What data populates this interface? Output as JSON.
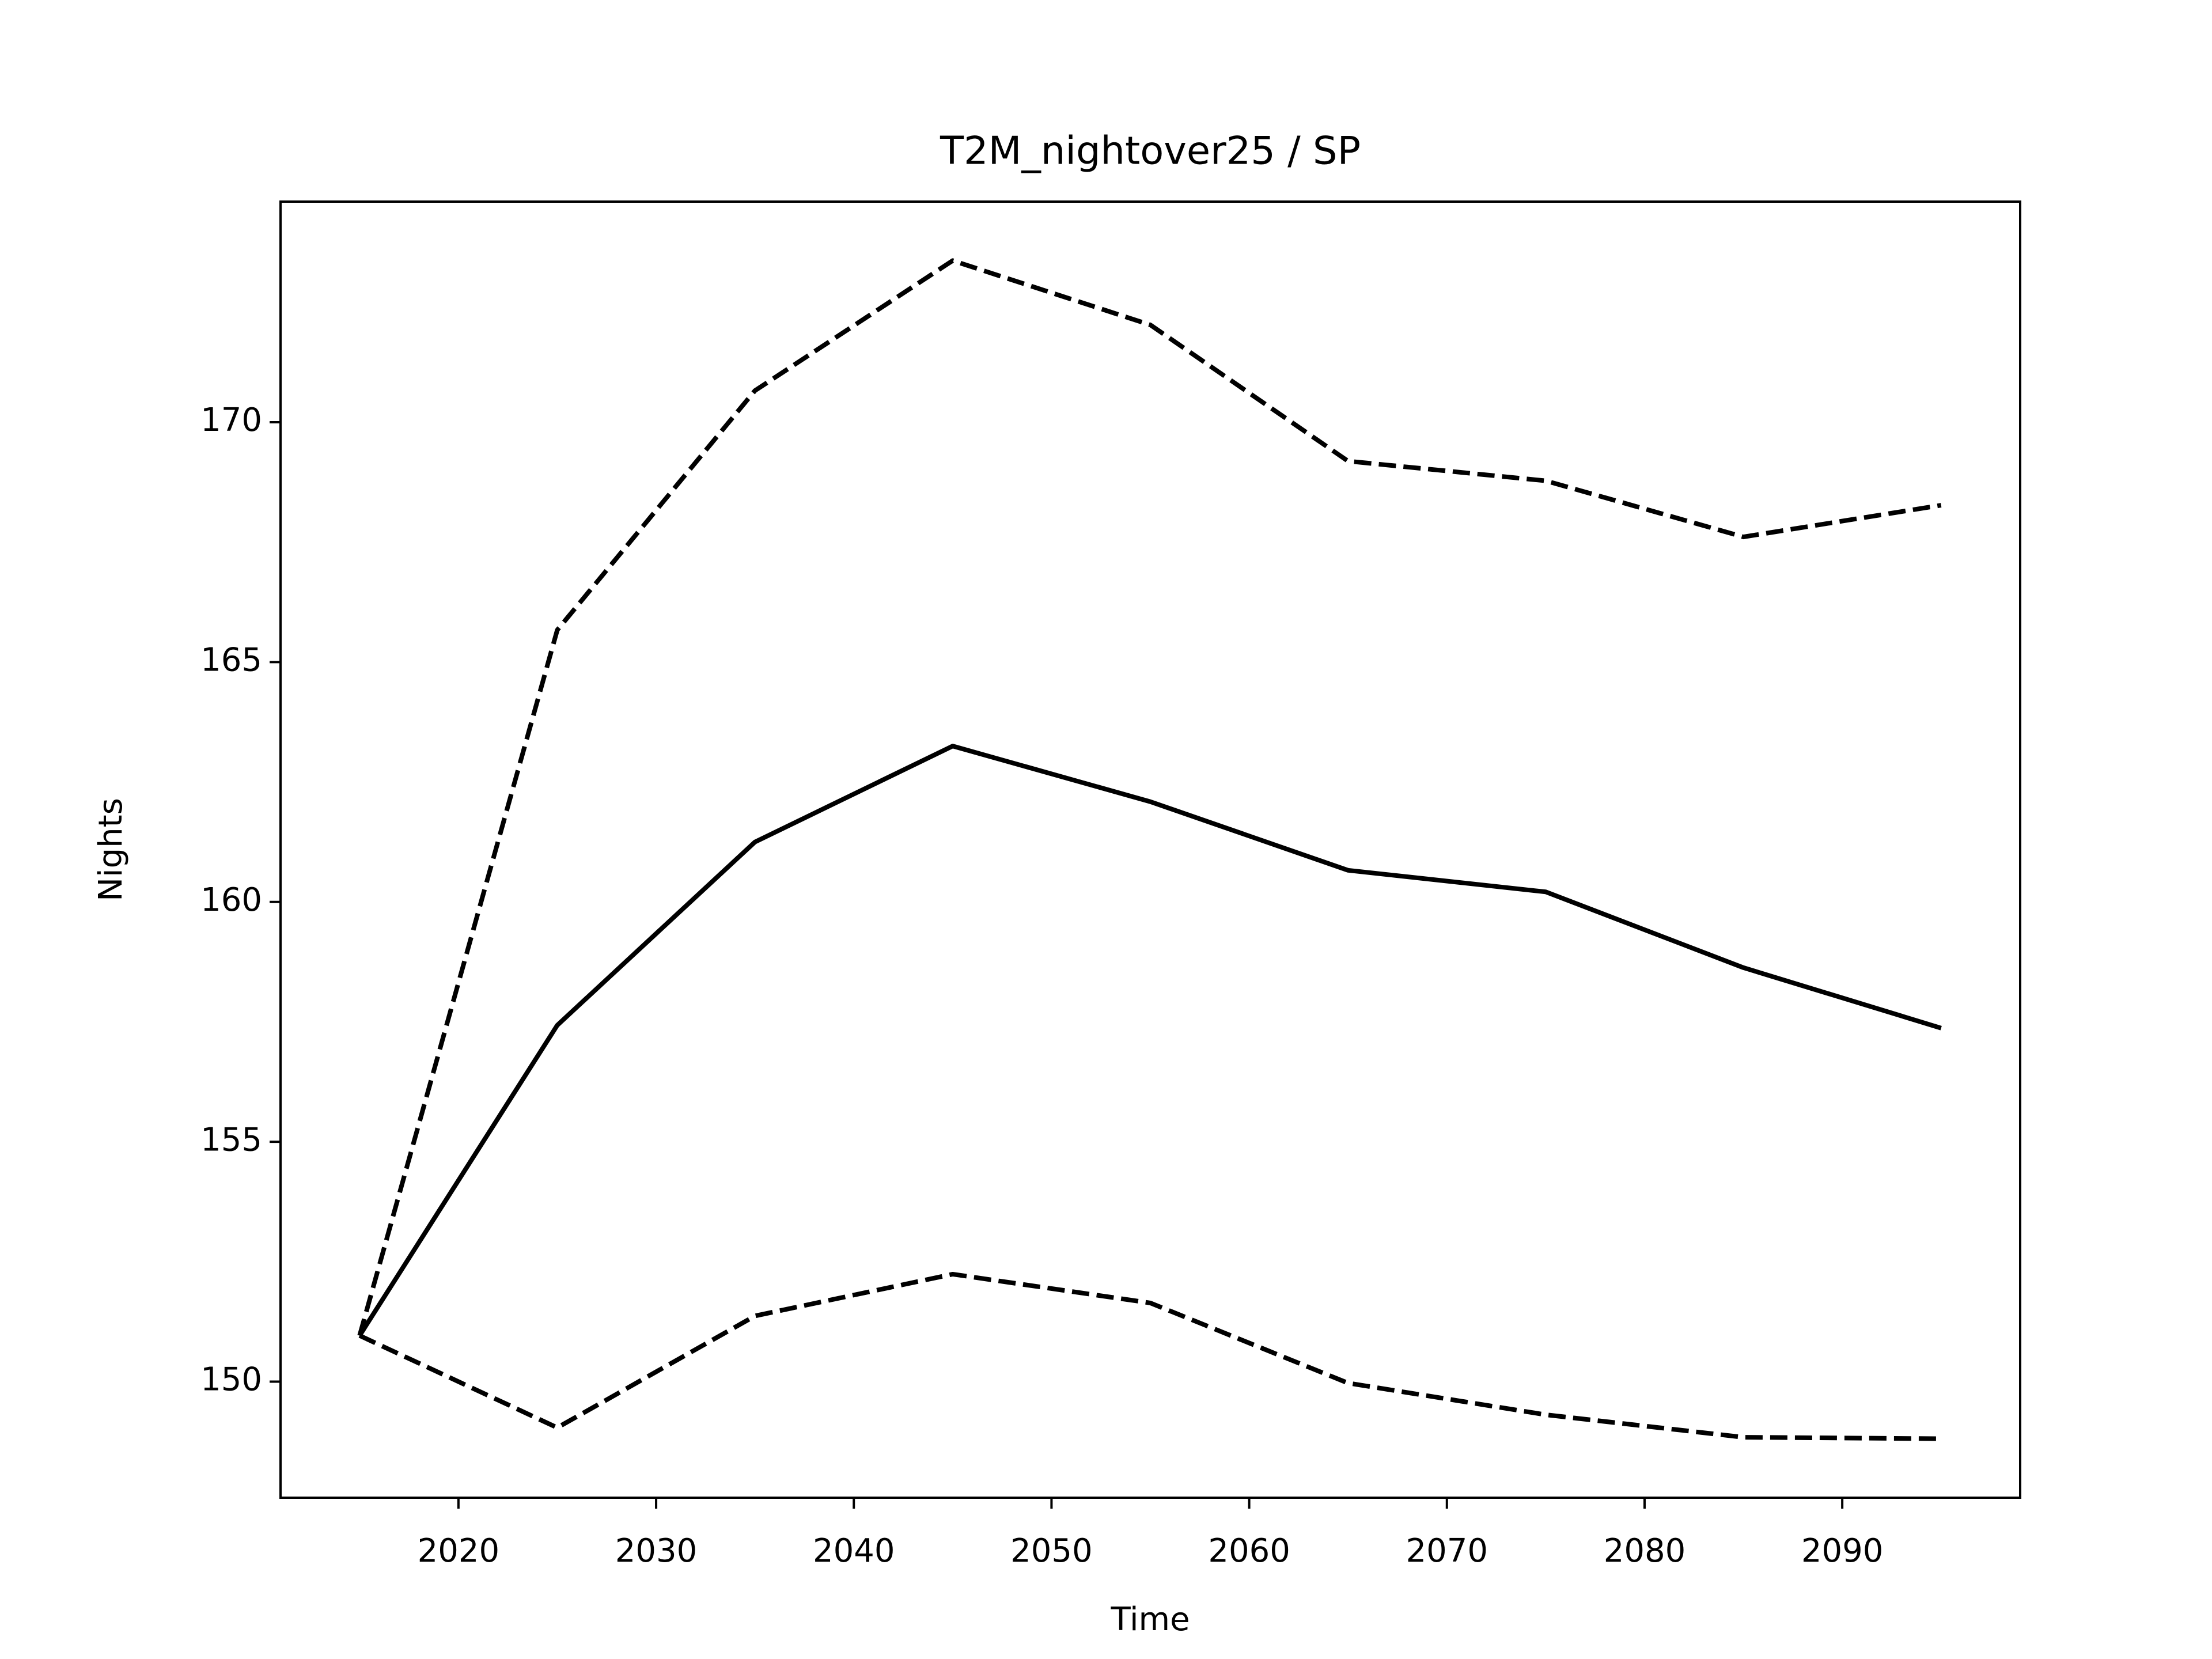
{
  "chart_data": {
    "type": "line",
    "title": "T2M_nightover25 / SP",
    "x_label": "Time",
    "y_label": "Nights",
    "x": [
      2015,
      2025,
      2035,
      2045,
      2055,
      2065,
      2075,
      2085,
      2095
    ],
    "series": [
      {
        "color": "#000000",
        "linestyle": "solid",
        "values": [
          150.96,
          157.43,
          161.25,
          163.25,
          162.09,
          160.66,
          160.21,
          158.63,
          157.37
        ]
      },
      {
        "color": "#000000",
        "linestyle": "dashed",
        "values": [
          150.96,
          165.67,
          170.66,
          173.37,
          172.03,
          169.19,
          168.78,
          167.61,
          168.27
        ]
      },
      {
        "color": "#000000",
        "linestyle": "dashed",
        "values": [
          150.96,
          149.04,
          151.37,
          152.24,
          151.64,
          149.97,
          149.31,
          148.84,
          148.81
        ]
      }
    ],
    "xlim": [
      2011,
      2099
    ],
    "xticks": [
      2020,
      2030,
      2040,
      2050,
      2060,
      2070,
      2080,
      2090
    ],
    "ylim": [
      147.58,
      174.6
    ],
    "yticks": [
      150,
      155,
      160,
      165,
      170
    ],
    "grid": false
  }
}
